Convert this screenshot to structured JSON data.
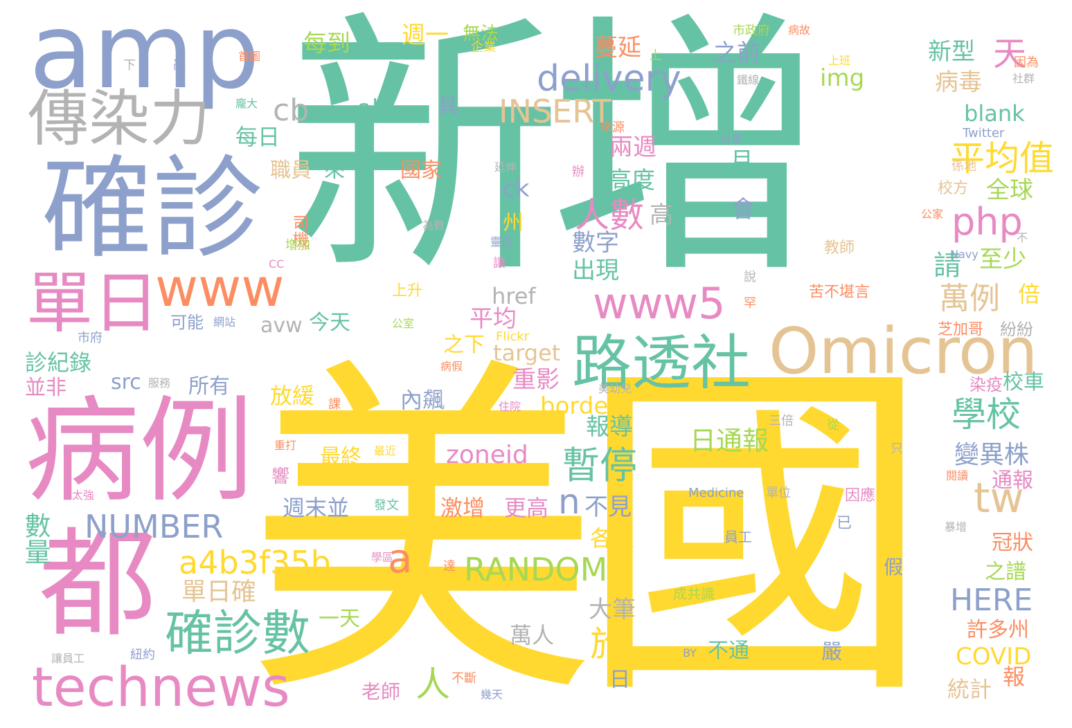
{
  "palette": {
    "green": "#66c2a5",
    "orange": "#fc8d62",
    "blue": "#8da0cb",
    "pink": "#e78ac3",
    "lime": "#a6d854",
    "yellow": "#ffd92f",
    "tan": "#e5c494",
    "gray": "#b3b3b3"
  },
  "words": [
    {
      "text": "新增",
      "color": "green"
    },
    {
      "text": "美國",
      "color": "yellow"
    },
    {
      "text": "amp",
      "color": "blue"
    },
    {
      "text": "確診",
      "color": "blue"
    },
    {
      "text": "傳染力",
      "color": "gray"
    },
    {
      "text": "病例",
      "color": "pink"
    },
    {
      "text": "都",
      "color": "pink"
    },
    {
      "text": "單日",
      "color": "pink"
    },
    {
      "text": "www",
      "color": "orange"
    },
    {
      "text": "technews",
      "color": "pink"
    },
    {
      "text": "確診數",
      "color": "green"
    },
    {
      "text": "a4b3f35b",
      "color": "yellow"
    },
    {
      "text": "NUMBER",
      "color": "blue"
    },
    {
      "text": "數量",
      "color": "green"
    },
    {
      "text": "單日確",
      "color": "tan"
    },
    {
      "text": "路透社",
      "color": "green"
    },
    {
      "text": "Omicron",
      "color": "tan"
    },
    {
      "text": "www5",
      "color": "pink"
    },
    {
      "text": "delivery",
      "color": "blue"
    },
    {
      "text": "INSERT",
      "color": "tan"
    },
    {
      "text": "RANDOM",
      "color": "lime"
    },
    {
      "text": "php",
      "color": "pink"
    },
    {
      "text": "平均值",
      "color": "yellow"
    },
    {
      "text": "人數",
      "color": "pink"
    },
    {
      "text": "暫停",
      "color": "green"
    },
    {
      "text": "學校",
      "color": "green"
    },
    {
      "text": "萬例",
      "color": "tan"
    },
    {
      "text": "tw",
      "color": "tan"
    },
    {
      "text": "HERE",
      "color": "blue"
    },
    {
      "text": "COVID",
      "color": "yellow"
    },
    {
      "text": "zoneid",
      "color": "pink"
    },
    {
      "text": "日通報",
      "color": "lime"
    },
    {
      "text": "變異株",
      "color": "blue"
    },
    {
      "text": "border",
      "color": "yellow"
    },
    {
      "text": "target",
      "color": "tan"
    },
    {
      "text": "href",
      "color": "gray"
    },
    {
      "text": "avw",
      "color": "gray"
    },
    {
      "text": "src",
      "color": "blue"
    },
    {
      "text": "cb",
      "color": "gray"
    },
    {
      "text": "alt",
      "color": "green"
    },
    {
      "text": "img",
      "color": "lime"
    },
    {
      "text": "blank",
      "color": "green"
    },
    {
      "text": "ck",
      "color": "blue"
    },
    {
      "text": "a",
      "color": "orange"
    },
    {
      "text": "n",
      "color": "blue"
    },
    {
      "text": "於",
      "color": "yellow"
    },
    {
      "text": "人",
      "color": "lime"
    },
    {
      "text": "天",
      "color": "pink"
    },
    {
      "text": "蔓延",
      "color": "orange"
    },
    {
      "text": "之前",
      "color": "blue"
    },
    {
      "text": "新型",
      "color": "green"
    },
    {
      "text": "病毒",
      "color": "tan"
    },
    {
      "text": "每到",
      "color": "lime"
    },
    {
      "text": "週一",
      "color": "yellow"
    },
    {
      "text": "無法",
      "color": "lime"
    },
    {
      "text": "每日",
      "color": "green"
    },
    {
      "text": "兩週",
      "color": "pink"
    },
    {
      "text": "月",
      "color": "green"
    },
    {
      "text": "高度",
      "color": "green"
    },
    {
      "text": "會",
      "color": "blue"
    },
    {
      "text": "高",
      "color": "gray"
    },
    {
      "text": "數字",
      "color": "blue"
    },
    {
      "text": "出現",
      "color": "green"
    },
    {
      "text": "請",
      "color": "green"
    },
    {
      "text": "至少",
      "color": "lime"
    },
    {
      "text": "全球",
      "color": "lime"
    },
    {
      "text": "倍",
      "color": "yellow"
    },
    {
      "text": "職員",
      "color": "tan"
    },
    {
      "text": "來",
      "color": "green"
    },
    {
      "text": "國家",
      "color": "orange"
    },
    {
      "text": "具",
      "color": "blue"
    },
    {
      "text": "州",
      "color": "yellow"
    },
    {
      "text": "司機",
      "color": "orange"
    },
    {
      "text": "增加",
      "color": "lime"
    },
    {
      "text": "平均",
      "color": "pink"
    },
    {
      "text": "之下",
      "color": "yellow"
    },
    {
      "text": "重影",
      "color": "pink"
    },
    {
      "text": "報導",
      "color": "green"
    },
    {
      "text": "可能",
      "color": "blue"
    },
    {
      "text": "今天",
      "color": "green"
    },
    {
      "text": "診紀錄",
      "color": "green"
    },
    {
      "text": "並非",
      "color": "pink"
    },
    {
      "text": "所有",
      "color": "blue"
    },
    {
      "text": "放緩",
      "color": "yellow"
    },
    {
      "text": "內飆",
      "color": "blue"
    },
    {
      "text": "最終",
      "color": "yellow"
    },
    {
      "text": "激增",
      "color": "orange"
    },
    {
      "text": "更高",
      "color": "pink"
    },
    {
      "text": "週末並",
      "color": "blue"
    },
    {
      "text": "不見",
      "color": "blue"
    },
    {
      "text": "各級",
      "color": "yellow"
    },
    {
      "text": "大筆",
      "color": "gray"
    },
    {
      "text": "萬人",
      "color": "gray"
    },
    {
      "text": "日",
      "color": "blue"
    },
    {
      "text": "一天",
      "color": "lime"
    },
    {
      "text": "老師",
      "color": "pink"
    },
    {
      "text": "不通",
      "color": "green"
    },
    {
      "text": "嚴",
      "color": "blue"
    },
    {
      "text": "通報",
      "color": "pink"
    },
    {
      "text": "冠狀",
      "color": "orange"
    },
    {
      "text": "之譜",
      "color": "lime"
    },
    {
      "text": "許多州",
      "color": "orange"
    },
    {
      "text": "統計",
      "color": "tan"
    },
    {
      "text": "報",
      "color": "orange"
    },
    {
      "text": "校車",
      "color": "green"
    },
    {
      "text": "紛紛",
      "color": "gray"
    },
    {
      "text": "芝加哥",
      "color": "orange"
    },
    {
      "text": "染疫",
      "color": "pink"
    },
    {
      "text": "假",
      "color": "blue"
    },
    {
      "text": "已",
      "color": "blue"
    },
    {
      "text": "因應",
      "color": "pink"
    },
    {
      "text": "員工",
      "color": "blue"
    },
    {
      "text": "成共識",
      "color": "lime"
    },
    {
      "text": "苦不堪言",
      "color": "orange"
    },
    {
      "text": "教師",
      "color": "tan"
    },
    {
      "text": "Medicine",
      "color": "blue"
    },
    {
      "text": "單位",
      "color": "gray"
    },
    {
      "text": "Twitter",
      "color": "blue"
    },
    {
      "text": "Flickr",
      "color": "yellow"
    },
    {
      "text": "Navy",
      "color": "blue"
    },
    {
      "text": "BY",
      "color": "blue"
    },
    {
      "text": "CC",
      "color": "pink"
    },
    {
      "text": "市政府",
      "color": "lime"
    },
    {
      "text": "病故",
      "color": "orange"
    },
    {
      "text": "企業",
      "color": "yellow"
    },
    {
      "text": "上",
      "color": "lime"
    },
    {
      "text": "上班",
      "color": "yellow"
    },
    {
      "text": "鐵線",
      "color": "gray"
    },
    {
      "text": "因為",
      "color": "orange"
    },
    {
      "text": "社群",
      "color": "gray"
    },
    {
      "text": "首圖",
      "color": "orange"
    },
    {
      "text": "下",
      "color": "gray"
    },
    {
      "text": "亂",
      "color": "blue"
    },
    {
      "text": "龐大",
      "color": "green"
    },
    {
      "text": "來源",
      "color": "orange"
    },
    {
      "text": "計畫",
      "color": "blue"
    },
    {
      "text": "延伸",
      "color": "gray"
    },
    {
      "text": "辦",
      "color": "pink"
    },
    {
      "text": "係地",
      "color": "tan"
    },
    {
      "text": "校方",
      "color": "tan"
    },
    {
      "text": "公家",
      "color": "orange"
    },
    {
      "text": "為數",
      "color": "gray"
    },
    {
      "text": "靈返",
      "color": "blue"
    },
    {
      "text": "不",
      "color": "gray"
    },
    {
      "text": "讓",
      "color": "pink"
    },
    {
      "text": "說",
      "color": "gray"
    },
    {
      "text": "上升",
      "color": "yellow"
    },
    {
      "text": "罕",
      "color": "orange"
    },
    {
      "text": "網站",
      "color": "blue"
    },
    {
      "text": "公室",
      "color": "lime"
    },
    {
      "text": "市府",
      "color": "blue"
    },
    {
      "text": "服務",
      "color": "gray"
    },
    {
      "text": "病假",
      "color": "orange"
    },
    {
      "text": "美幼兒",
      "color": "gray"
    },
    {
      "text": "課",
      "color": "orange"
    },
    {
      "text": "住院",
      "color": "pink"
    },
    {
      "text": "三倍",
      "color": "gray"
    },
    {
      "text": "從",
      "color": "lime"
    },
    {
      "text": "只",
      "color": "gray"
    },
    {
      "text": "重打",
      "color": "orange"
    },
    {
      "text": "最近",
      "color": "yellow"
    },
    {
      "text": "閱讀",
      "color": "orange"
    },
    {
      "text": "太強",
      "color": "pink"
    },
    {
      "text": "發文",
      "color": "green"
    },
    {
      "text": "學區",
      "color": "pink"
    },
    {
      "text": "達",
      "color": "orange"
    },
    {
      "text": "暴增",
      "color": "gray"
    },
    {
      "text": "讓員工",
      "color": "gray"
    },
    {
      "text": "紐約",
      "color": "blue"
    },
    {
      "text": "不斷",
      "color": "orange"
    },
    {
      "text": "幾天",
      "color": "blue"
    },
    {
      "text": "響",
      "color": "pink"
    }
  ]
}
